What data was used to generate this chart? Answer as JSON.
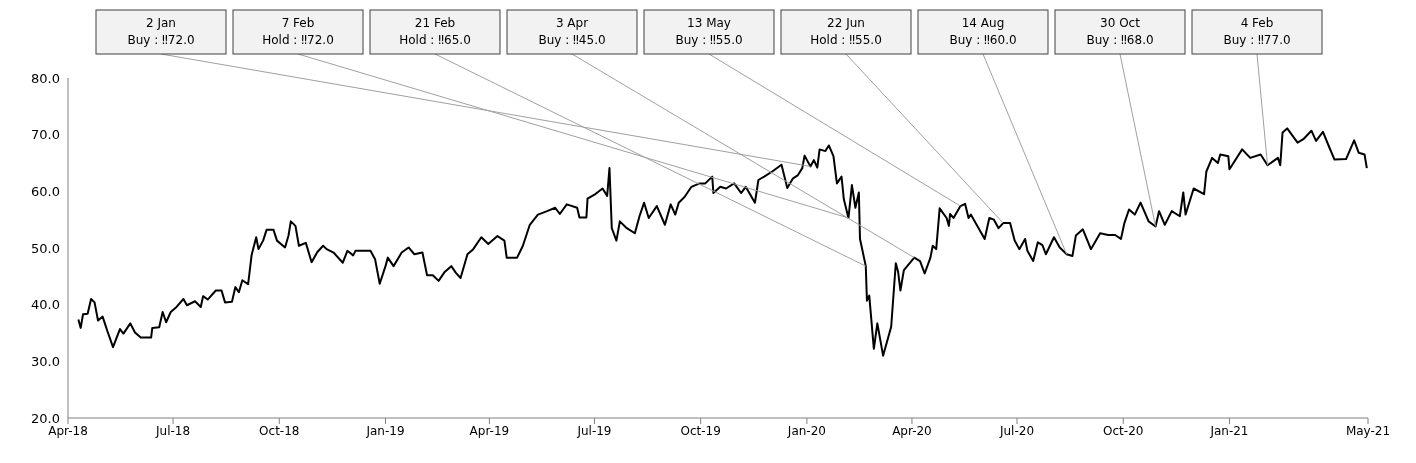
{
  "chart_data": {
    "type": "line",
    "legend": false,
    "grid": false,
    "marker": "none",
    "line_style": "solid",
    "xlim": [
      "2018-04-01",
      "2021-05-01"
    ],
    "xticks": [
      {
        "value": "2018-04-01",
        "label": "Apr-18"
      },
      {
        "value": "2018-07-01",
        "label": "Jul-18"
      },
      {
        "value": "2018-10-01",
        "label": "Oct-18"
      },
      {
        "value": "2019-01-01",
        "label": "Jan-19"
      },
      {
        "value": "2019-04-01",
        "label": "Apr-19"
      },
      {
        "value": "2019-07-01",
        "label": "Jul-19"
      },
      {
        "value": "2019-10-01",
        "label": "Oct-19"
      },
      {
        "value": "2020-01-01",
        "label": "Jan-20"
      },
      {
        "value": "2020-04-01",
        "label": "Apr-20"
      },
      {
        "value": "2020-07-01",
        "label": "Jul-20"
      },
      {
        "value": "2020-10-01",
        "label": "Oct-20"
      },
      {
        "value": "2021-01-01",
        "label": "Jan-21"
      },
      {
        "value": "2021-05-01",
        "label": "May-21"
      }
    ],
    "ylim": [
      20,
      80
    ],
    "yticks": [
      {
        "value": 20,
        "label": "20.0"
      },
      {
        "value": 30,
        "label": "30.0"
      },
      {
        "value": 40,
        "label": "40.0"
      },
      {
        "value": 50,
        "label": "50.0"
      },
      {
        "value": 60,
        "label": "60.0"
      },
      {
        "value": 70,
        "label": "70.0"
      },
      {
        "value": 80,
        "label": "80.0"
      }
    ],
    "x": [
      "2018-04-10",
      "2018-04-12",
      "2018-04-14",
      "2018-04-18",
      "2018-04-21",
      "2018-04-24",
      "2018-04-27",
      "2018-05-01",
      "2018-05-05",
      "2018-05-10",
      "2018-05-16",
      "2018-05-19",
      "2018-05-25",
      "2018-05-29",
      "2018-06-03",
      "2018-06-12",
      "2018-06-13",
      "2018-06-19",
      "2018-06-22",
      "2018-06-25",
      "2018-06-29",
      "2018-07-04",
      "2018-07-10",
      "2018-07-13",
      "2018-07-20",
      "2018-07-25",
      "2018-07-27",
      "2018-07-31",
      "2018-08-07",
      "2018-08-12",
      "2018-08-15",
      "2018-08-21",
      "2018-08-24",
      "2018-08-27",
      "2018-08-30",
      "2018-09-04",
      "2018-09-07",
      "2018-09-11",
      "2018-09-13",
      "2018-09-17",
      "2018-09-20",
      "2018-09-26",
      "2018-09-29",
      "2018-10-06",
      "2018-10-09",
      "2018-10-11",
      "2018-10-15",
      "2018-10-18",
      "2018-10-24",
      "2018-10-29",
      "2018-11-03",
      "2018-11-08",
      "2018-11-11",
      "2018-11-17",
      "2018-11-25",
      "2018-11-29",
      "2018-12-04",
      "2018-12-06",
      "2018-12-19",
      "2018-12-23",
      "2018-12-27",
      "2019-01-01",
      "2019-01-03",
      "2019-01-08",
      "2019-01-15",
      "2019-01-21",
      "2019-01-26",
      "2019-02-02",
      "2019-02-06",
      "2019-02-11",
      "2019-02-16",
      "2019-02-21",
      "2019-02-27",
      "2019-03-03",
      "2019-03-07",
      "2019-03-13",
      "2019-03-18",
      "2019-03-25",
      "2019-03-31",
      "2019-04-08",
      "2019-04-14",
      "2019-04-16",
      "2019-04-25",
      "2019-04-30",
      "2019-05-06",
      "2019-05-13",
      "2019-05-21",
      "2019-05-28",
      "2019-06-01",
      "2019-06-07",
      "2019-06-16",
      "2019-06-18",
      "2019-06-24",
      "2019-06-25",
      "2019-07-01",
      "2019-07-08",
      "2019-07-12",
      "2019-07-14",
      "2019-07-16",
      "2019-07-20",
      "2019-07-23",
      "2019-07-29",
      "2019-08-05",
      "2019-08-09",
      "2019-08-13",
      "2019-08-17",
      "2019-08-24",
      "2019-08-31",
      "2019-09-05",
      "2019-09-09",
      "2019-09-12",
      "2019-09-17",
      "2019-09-23",
      "2019-09-30",
      "2019-10-05",
      "2019-10-11",
      "2019-10-12",
      "2019-10-18",
      "2019-10-23",
      "2019-10-30",
      "2019-11-05",
      "2019-11-09",
      "2019-11-17",
      "2019-11-20",
      "2019-11-25",
      "2019-12-02",
      "2019-12-10",
      "2019-12-15",
      "2019-12-20",
      "2019-12-24",
      "2019-12-28",
      "2019-12-30",
      "2020-01-04",
      "2020-01-07",
      "2020-01-10",
      "2020-01-12",
      "2020-01-17",
      "2020-01-20",
      "2020-01-24",
      "2020-01-27",
      "2020-01-31",
      "2020-02-02",
      "2020-02-06",
      "2020-02-09",
      "2020-02-12",
      "2020-02-15",
      "2020-02-16",
      "2020-02-21",
      "2020-02-22",
      "2020-02-24",
      "2020-02-28",
      "2020-03-02",
      "2020-03-07",
      "2020-03-14",
      "2020-03-18",
      "2020-03-20",
      "2020-03-22",
      "2020-03-25",
      "2020-04-03",
      "2020-04-08",
      "2020-04-12",
      "2020-04-17",
      "2020-04-19",
      "2020-04-22",
      "2020-04-25",
      "2020-05-01",
      "2020-05-03",
      "2020-05-04",
      "2020-05-07",
      "2020-05-13",
      "2020-05-17",
      "2020-05-20",
      "2020-05-22",
      "2020-05-27",
      "2020-06-03",
      "2020-06-07",
      "2020-06-11",
      "2020-06-15",
      "2020-06-19",
      "2020-06-25",
      "2020-06-29",
      "2020-07-03",
      "2020-07-08",
      "2020-07-10",
      "2020-07-15",
      "2020-07-19",
      "2020-07-23",
      "2020-07-26",
      "2020-08-02",
      "2020-08-07",
      "2020-08-13",
      "2020-08-18",
      "2020-08-21",
      "2020-08-27",
      "2020-09-03",
      "2020-09-11",
      "2020-09-18",
      "2020-09-24",
      "2020-09-29",
      "2020-10-02",
      "2020-10-06",
      "2020-10-11",
      "2020-10-16",
      "2020-10-23",
      "2020-10-29",
      "2020-11-01",
      "2020-11-06",
      "2020-11-12",
      "2020-11-19",
      "2020-11-22",
      "2020-11-24",
      "2020-12-01",
      "2020-12-10",
      "2020-12-12",
      "2020-12-17",
      "2020-12-22",
      "2020-12-24",
      "2020-12-31",
      "2021-01-01",
      "2021-01-12",
      "2021-01-19",
      "2021-01-28",
      "2021-02-03",
      "2021-02-12",
      "2021-02-14",
      "2021-02-16",
      "2021-02-20",
      "2021-03-01",
      "2021-03-06",
      "2021-03-13",
      "2021-03-17",
      "2021-03-23",
      "2021-03-28",
      "2021-04-02",
      "2021-04-12",
      "2021-04-19",
      "2021-04-23",
      "2021-04-28",
      "2021-04-30"
    ],
    "series": [
      {
        "color": "#000000",
        "values": [
          37.4,
          35.9,
          38.3,
          38.4,
          41.0,
          40.4,
          37.2,
          37.9,
          35.4,
          32.5,
          35.7,
          34.9,
          36.7,
          35.1,
          34.2,
          34.2,
          35.9,
          36.0,
          38.7,
          36.9,
          38.7,
          39.6,
          41.0,
          39.9,
          40.6,
          39.6,
          41.5,
          40.9,
          42.5,
          42.5,
          40.4,
          40.5,
          43.1,
          42.2,
          44.3,
          43.6,
          48.7,
          51.9,
          49.8,
          51.3,
          53.2,
          53.2,
          51.3,
          50.1,
          52.2,
          54.7,
          53.9,
          50.4,
          50.9,
          47.5,
          49.3,
          50.4,
          49.8,
          49.2,
          47.4,
          49.5,
          48.7,
          49.5,
          49.5,
          48.0,
          43.7,
          46.8,
          48.3,
          46.8,
          49.2,
          50.1,
          48.9,
          49.2,
          45.2,
          45.2,
          44.2,
          45.7,
          46.8,
          45.6,
          44.7,
          48.9,
          49.8,
          51.9,
          50.7,
          52.1,
          51.3,
          48.3,
          48.3,
          50.4,
          54.1,
          55.9,
          56.5,
          57.1,
          56.0,
          57.7,
          57.1,
          55.4,
          55.4,
          58.7,
          59.4,
          60.5,
          59.2,
          64.1,
          53.5,
          51.3,
          54.7,
          53.5,
          52.6,
          55.6,
          58.0,
          55.3,
          57.4,
          54.1,
          57.7,
          55.9,
          58.0,
          59.0,
          60.8,
          61.4,
          61.4,
          62.6,
          59.7,
          60.8,
          60.5,
          61.4,
          59.7,
          60.8,
          58.0,
          62.0,
          62.6,
          63.5,
          64.7,
          60.6,
          62.3,
          62.8,
          64.1,
          66.3,
          64.4,
          65.5,
          64.2,
          67.4,
          67.1,
          68.1,
          66.2,
          61.4,
          62.6,
          58.6,
          55.3,
          61.1,
          57.1,
          59.8,
          51.6,
          46.8,
          40.7,
          41.6,
          32.2,
          36.7,
          31.0,
          36.1,
          47.3,
          45.8,
          42.5,
          46.1,
          48.3,
          47.7,
          45.5,
          48.3,
          50.4,
          49.8,
          57.0,
          55.3,
          53.9,
          56.0,
          55.3,
          57.4,
          57.8,
          55.3,
          55.9,
          54.1,
          51.6,
          55.3,
          55.0,
          53.5,
          54.4,
          54.4,
          51.3,
          49.8,
          51.6,
          49.5,
          47.7,
          51.0,
          50.5,
          48.9,
          51.9,
          50.1,
          48.9,
          48.6,
          52.2,
          53.3,
          49.8,
          52.6,
          52.3,
          52.3,
          51.6,
          54.4,
          56.8,
          55.9,
          58.0,
          54.7,
          53.8,
          56.5,
          54.1,
          56.5,
          55.6,
          59.8,
          55.9,
          60.5,
          59.5,
          63.5,
          65.9,
          65.0,
          66.5,
          66.2,
          63.9,
          67.4,
          65.9,
          66.5,
          64.6,
          65.9,
          64.6,
          70.4,
          71.1,
          68.6,
          69.2,
          70.7,
          68.9,
          70.5,
          68.0,
          65.6,
          65.7,
          69.0,
          66.8,
          66.5,
          64.1
        ]
      }
    ],
    "annotations": [
      {
        "text": "2 Jan\nBuy : ‼72.0",
        "x": "2020-01-04",
        "y": 64.4
      },
      {
        "text": "7 Feb\nHold : ‼72.0",
        "x": "2020-02-06",
        "y": 55.3
      },
      {
        "text": "21 Feb\nHold : ‼65.0",
        "x": "2020-02-21",
        "y": 46.8
      },
      {
        "text": "3 Apr\nBuy : ‼45.0",
        "x": "2020-04-03",
        "y": 48.3
      },
      {
        "text": "13 May\nBuy : ‼55.0",
        "x": "2020-05-13",
        "y": 57.4
      },
      {
        "text": "22 Jun\nHold : ‼55.0",
        "x": "2020-06-19",
        "y": 54.4
      },
      {
        "text": "14 Aug\nBuy : ‼60.0",
        "x": "2020-08-13",
        "y": 48.9
      },
      {
        "text": "30 Oct\nBuy : ‼68.0",
        "x": "2020-10-29",
        "y": 53.8
      },
      {
        "text": "4 Feb\nBuy : ‼77.0",
        "x": "2021-02-03",
        "y": 64.6
      }
    ]
  }
}
